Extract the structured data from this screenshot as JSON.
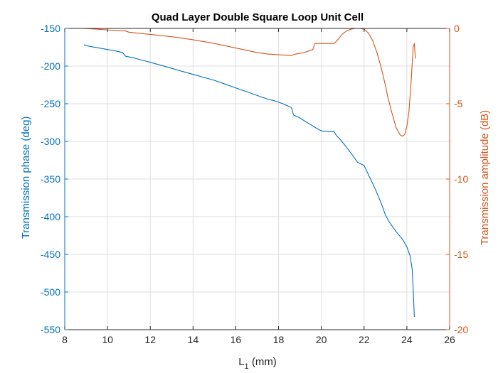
{
  "colors": {
    "left_axis": "#0072BD",
    "right_axis": "#D95319",
    "axis": "#262626",
    "grid": "#dfdfdf"
  },
  "chart_data": {
    "type": "line",
    "title": "Quad Layer Double Square Loop Unit Cell",
    "xlabel": "L",
    "xlabel_subscript": "1",
    "xlabel_unit": " (mm)",
    "ylabel_left": "Transmission phase (deg)",
    "ylabel_right": "Transmission amplitude (dB)",
    "xlim": [
      8,
      26
    ],
    "ylim_left": [
      -550,
      -150
    ],
    "ylim_right": [
      -20,
      0
    ],
    "xticks": [
      "8",
      "10",
      "12",
      "14",
      "16",
      "18",
      "20",
      "22",
      "24",
      "26"
    ],
    "yticks_left": [
      "-150",
      "-200",
      "-250",
      "-300",
      "-350",
      "-400",
      "-450",
      "-500",
      "-550"
    ],
    "yticks_right": [
      "0",
      "-5",
      "-10",
      "-15",
      "-20"
    ],
    "grid": true,
    "series": [
      {
        "name": "",
        "axis": "left",
        "color": "#0072BD",
        "x": [
          8.9,
          9.2,
          9.6,
          10.0,
          10.4,
          10.7,
          10.85,
          11.2,
          11.6,
          12.0,
          12.5,
          13.0,
          13.5,
          14.0,
          14.5,
          15.0,
          15.5,
          16.0,
          16.5,
          17.0,
          17.5,
          17.8,
          18.2,
          18.6,
          18.7,
          19.0,
          19.4,
          19.8,
          20.0,
          20.3,
          20.6,
          20.7,
          20.9,
          21.1,
          21.4,
          21.7,
          22.0,
          22.2,
          22.5,
          22.8,
          23.0,
          23.2,
          23.5,
          23.8,
          24.0,
          24.15,
          24.25,
          24.3,
          24.35
        ],
        "y": [
          -172,
          -174,
          -176,
          -178,
          -180,
          -182,
          -187,
          -189,
          -192,
          -195,
          -199,
          -203,
          -207,
          -211,
          -215,
          -219,
          -224,
          -229,
          -234,
          -239,
          -244,
          -246,
          -250,
          -255,
          -265,
          -269,
          -276,
          -283,
          -286,
          -287,
          -287,
          -292,
          -298,
          -305,
          -316,
          -328,
          -332,
          -344,
          -362,
          -382,
          -398,
          -408,
          -420,
          -430,
          -440,
          -452,
          -470,
          -500,
          -533
        ]
      },
      {
        "name": "",
        "axis": "right",
        "color": "#D95319",
        "x": [
          8.9,
          9.5,
          10.0,
          10.8,
          11.0,
          12.0,
          13.0,
          14.0,
          15.0,
          16.0,
          17.0,
          17.5,
          18.0,
          18.6,
          18.8,
          19.2,
          19.6,
          19.7,
          20.2,
          20.6,
          20.8,
          21.0,
          21.2,
          21.4,
          21.6,
          21.8,
          22.0,
          22.2,
          22.4,
          22.6,
          22.8,
          23.0,
          23.1,
          23.3,
          23.5,
          23.7,
          23.8,
          23.9,
          24.0,
          24.1,
          24.2,
          24.3,
          24.35,
          24.4
        ],
        "y": [
          0.0,
          -0.05,
          -0.1,
          -0.15,
          -0.25,
          -0.4,
          -0.55,
          -0.75,
          -1.0,
          -1.3,
          -1.6,
          -1.7,
          -1.75,
          -1.8,
          -1.7,
          -1.6,
          -1.4,
          -1.0,
          -1.0,
          -1.0,
          -0.7,
          -0.35,
          -0.15,
          -0.05,
          0.0,
          0.0,
          -0.05,
          -0.3,
          -0.8,
          -1.6,
          -2.6,
          -3.8,
          -4.5,
          -5.6,
          -6.6,
          -7.1,
          -7.15,
          -7.05,
          -6.5,
          -5.5,
          -3.5,
          -1.2,
          -1.0,
          -2.0
        ]
      }
    ]
  }
}
